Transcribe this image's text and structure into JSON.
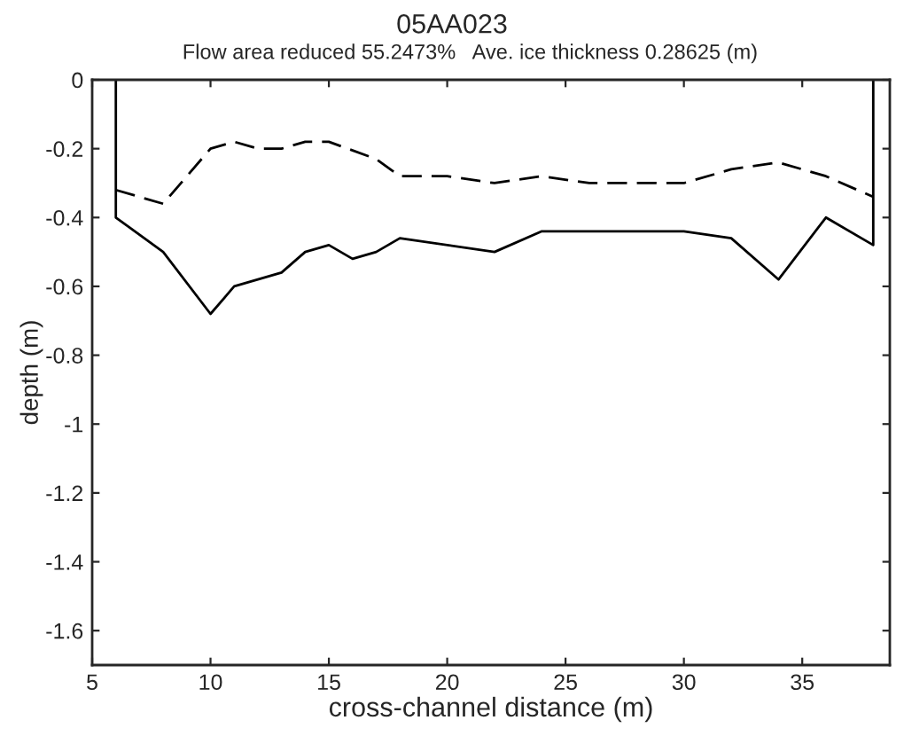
{
  "chart_data": {
    "type": "line",
    "title": "05AA023",
    "subtitle": "Flow area reduced 55.2473%   Ave. ice thickness 0.28625 (m)",
    "xlabel": "cross-channel distance (m)",
    "ylabel": "depth (m)",
    "series": [
      {
        "color": "#000000",
        "line_style": "solid",
        "x": [
          6,
          6,
          8,
          10,
          11,
          13,
          14,
          15,
          16,
          17,
          18,
          22,
          24,
          30,
          32,
          34,
          36,
          38,
          38
        ],
        "values": [
          0,
          -0.4,
          -0.5,
          -0.68,
          -0.6,
          -0.56,
          -0.5,
          -0.48,
          -0.52,
          -0.5,
          -0.46,
          -0.5,
          -0.44,
          -0.44,
          -0.46,
          -0.58,
          -0.4,
          -0.48,
          0
        ]
      },
      {
        "color": "#000000",
        "line_style": "dashed",
        "x": [
          6,
          8,
          10,
          11,
          12,
          13,
          14,
          15,
          17,
          18,
          20,
          22,
          24,
          26,
          28,
          30,
          32,
          34,
          36,
          38
        ],
        "values": [
          -0.32,
          -0.36,
          -0.2,
          -0.18,
          -0.2,
          -0.2,
          -0.18,
          -0.18,
          -0.23,
          -0.28,
          -0.28,
          -0.3,
          -0.28,
          -0.3,
          -0.3,
          -0.3,
          -0.26,
          -0.24,
          -0.28,
          -0.34
        ]
      }
    ],
    "xlim": [
      5,
      38.7
    ],
    "xticks": [
      5,
      10,
      15,
      20,
      25,
      30,
      35
    ],
    "ylim": [
      -1.7,
      0
    ],
    "yticks": [
      {
        "value": -1.6,
        "label": "-1.6"
      },
      {
        "value": -1.4,
        "label": "-1.4"
      },
      {
        "value": -1.2,
        "label": "-1.2"
      },
      {
        "value": -1,
        "label": "-1"
      },
      {
        "value": -0.8,
        "label": "-0.8"
      },
      {
        "value": -0.6,
        "label": "-0.6"
      },
      {
        "value": -0.4,
        "label": "-0.4"
      },
      {
        "value": -0.2,
        "label": "-0.2"
      },
      0
    ],
    "grid": false
  }
}
